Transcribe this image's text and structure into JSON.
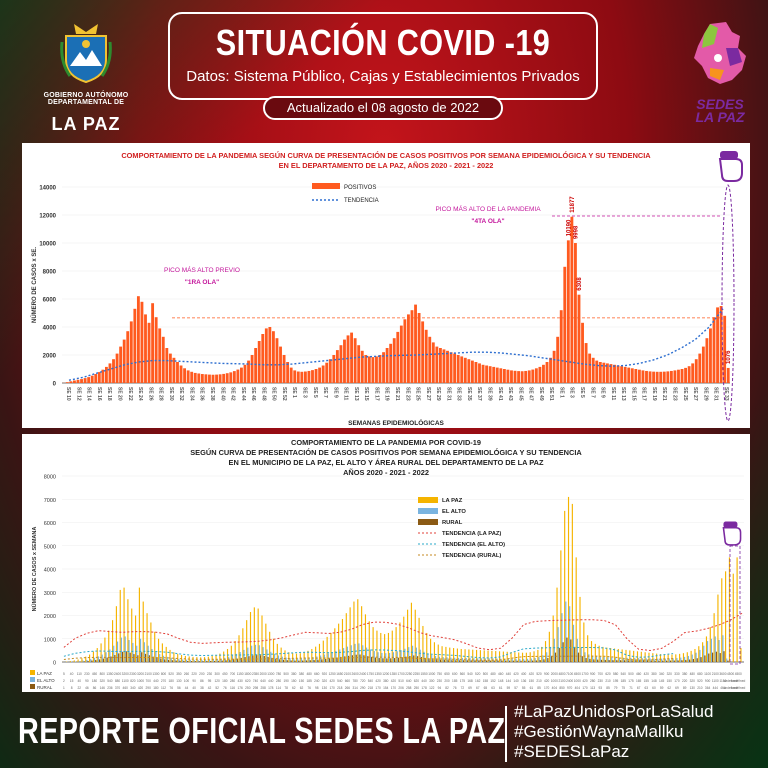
{
  "header": {
    "title": "SITUACIÓN COVID -19",
    "subtitle": "Datos: Sistema Público, Cajas y Establecimientos Privados",
    "updated": "Actualizado el  08  agosto de 2022"
  },
  "logo_left": {
    "line1": "GOBIERNO AUTÓNOMO DEPARTAMENTAL DE",
    "line2": "LA PAZ"
  },
  "logo_right": {
    "line1": "SEDES",
    "line2": "LA PAZ"
  },
  "colors": {
    "accent": "#ff5a1f",
    "title_red": "#d12020",
    "purple": "#7b2aa0",
    "la_paz": "#f5b400",
    "el_alto": "#7ab4e0",
    "rural": "#8b5a14"
  },
  "chart_data": [
    {
      "type": "bar",
      "title_lines": [
        "COMPORTAMIENTO DE LA PANDEMIA SEGÚN CURVA DE PRESENTACIÓN DE CASOS POSITIVOS POR SEMANA EPIDEMIOLÓGICA Y SU TENDENCIA",
        "EN EL DEPARTAMENTO DE LA PAZ, AÑOS 2020 - 2021 - 2022"
      ],
      "ylabel": "NÚMERO DE CASOS x SE.",
      "xlabel": "SEMANAS EPIDEMIOLÓGICAS",
      "ylim": [
        0,
        14000
      ],
      "yticks": [
        "0",
        "2000",
        "4000",
        "6000",
        "8000",
        "10000",
        "12000",
        "14000"
      ],
      "legend": [
        "POSITIVOS",
        "TENDENCIA"
      ],
      "annotations": {
        "peak_previous": [
          "PICO MÁS ALTO PREVIO",
          "\"1RA OLA\""
        ],
        "peak_max": [
          "PICO MÁS ALTO DE LA PANDEMIA",
          "\"4TA OLA\""
        ],
        "peak_max_values": [
          "10190",
          "11877",
          "9998",
          "6308"
        ],
        "last_value": "1076"
      },
      "xticks": [
        "SE 10",
        "SE 12",
        "SE 14",
        "SE 16",
        "SE 18",
        "SE 20",
        "SE 22",
        "SE 24",
        "SE 26",
        "SE 28",
        "SE 30",
        "SE 32",
        "SE 34",
        "SE 36",
        "SE 38",
        "SE 40",
        "SE 42",
        "SE 44",
        "SE 46",
        "SE 48",
        "SE 50",
        "SE 52",
        "SE 1",
        "SE 3",
        "SE 5",
        "SE 7",
        "SE 9",
        "SE 11",
        "SE 13",
        "SE 15",
        "SE 17",
        "SE 19",
        "SE 21",
        "SE 23",
        "SE 25",
        "SE 27",
        "SE 29",
        "SE 31",
        "SE 33",
        "SE 35",
        "SE 37",
        "SE 39",
        "SE 41",
        "SE 43",
        "SE 45",
        "SE 47",
        "SE 49",
        "SE 51",
        "SE 1",
        "SE 3",
        "SE 5",
        "SE 7",
        "SE 9",
        "SE 11",
        "SE 13",
        "SE 15",
        "SE 17",
        "SE 19",
        "SE 21",
        "SE 23",
        "SE 25",
        "SE 27",
        "SE 29",
        "SE 31",
        "SE 33"
      ],
      "series": [
        {
          "name": "POSITIVOS",
          "values": [
            10,
            60,
            120,
            180,
            230,
            280,
            350,
            420,
            520,
            640,
            780,
            950,
            1150,
            1400,
            1700,
            2100,
            2600,
            3100,
            3700,
            4400,
            5300,
            6200,
            5800,
            4900,
            4300,
            5700,
            4700,
            3900,
            3300,
            2500,
            2100,
            1800,
            1500,
            1250,
            1050,
            900,
            800,
            720,
            680,
            640,
            620,
            600,
            590,
            600,
            620,
            650,
            700,
            760,
            850,
            960,
            1100,
            1300,
            1600,
            2000,
            2500,
            3000,
            3500,
            3900,
            4000,
            3700,
            3200,
            2600,
            2000,
            1500,
            1100,
            900,
            820,
            800,
            820,
            860,
            920,
            1000,
            1100,
            1250,
            1450,
            1700,
            2000,
            2350,
            2700,
            3100,
            3400,
            3600,
            3200,
            2700,
            2300,
            2000,
            1900,
            1850,
            1900,
            2000,
            2200,
            2500,
            2800,
            3200,
            3650,
            4100,
            4550,
            4900,
            5200,
            5600,
            5000,
            4400,
            3800,
            3300,
            2900,
            2600,
            2500,
            2400,
            2300,
            2200,
            2100,
            2000,
            1900,
            1800,
            1700,
            1600,
            1500,
            1400,
            1300,
            1250,
            1200,
            1150,
            1100,
            1050,
            1000,
            950,
            900,
            870,
            850,
            840,
            860,
            900,
            960,
            1050,
            1150,
            1300,
            1500,
            1800,
            2300,
            3300,
            5200,
            8300,
            10190,
            11877,
            9998,
            6308,
            4300,
            2853,
            2100,
            1800,
            1600,
            1500,
            1450,
            1400,
            1350,
            1300,
            1250,
            1200,
            1150,
            1100,
            1050,
            1000,
            950,
            900,
            860,
            830,
            810,
            800,
            800,
            810,
            830,
            860,
            900,
            950,
            1000,
            1080,
            1200,
            1400,
            1700,
            2100,
            2600,
            3200,
            3900,
            4700,
            5400,
            5500,
            4800,
            1076
          ]
        },
        {
          "name": "TENDENCIA",
          "values": [
            200,
            400,
            700,
            1000,
            1300,
            1500,
            1600,
            1600,
            1550,
            1500,
            1450,
            1400,
            1380,
            1350,
            1300,
            1300,
            1350,
            1450,
            1550,
            1650,
            1750,
            1850,
            1900,
            1950,
            1980,
            2000,
            2050,
            2100,
            2150,
            2200,
            2200,
            2150,
            2050,
            1950,
            1800,
            1650,
            1500,
            1350,
            1250,
            1200,
            1250,
            1400,
            1650,
            2000,
            2500,
            3100,
            4000,
            5300
          ]
        }
      ]
    },
    {
      "type": "bar",
      "title_lines": [
        "COMPORTAMIENTO DE LA PANDEMIA POR COVID-19",
        "SEGÚN CURVA DE PRESENTACIÓN DE CASOS POSITIVOS POR SEMANA EPIDEMIOLÓGICA Y SU TENDENCIA",
        "EN EL  MUNICIPIO DE LA PAZ, EL ALTO Y ÁREA RURAL DEL DEPARTAMENTO DE LA PAZ",
        "AÑOS 2020 - 2021 - 2022"
      ],
      "ylabel": "NÚMERO DE CASOS x SEMANA",
      "ylim": [
        0,
        8000
      ],
      "yticks": [
        "0",
        "1000",
        "2000",
        "3000",
        "4000",
        "5000",
        "6000",
        "7000",
        "8000"
      ],
      "legend": [
        "LA PAZ",
        "EL ALTO",
        "RURAL",
        "TENDENCIA (LA PAZ)",
        "TENDENCIA (EL ALTO)",
        "TENDENCIA (RURAL)"
      ],
      "row_labels": [
        "LA PAZ",
        "EL ALTO",
        "RURAL"
      ],
      "series": [
        {
          "name": "LA PAZ",
          "values": [
            5,
            20,
            40,
            70,
            110,
            160,
            230,
            320,
            450,
            600,
            800,
            1050,
            1350,
            1800,
            2400,
            3100,
            3200,
            2700,
            2300,
            2000,
            3200,
            2600,
            2100,
            1700,
            1300,
            1000,
            800,
            650,
            520,
            420,
            350,
            300,
            260,
            240,
            220,
            210,
            200,
            210,
            230,
            260,
            300,
            360,
            450,
            560,
            700,
            900,
            1150,
            1450,
            1800,
            2150,
            2350,
            2300,
            2000,
            1650,
            1300,
            1000,
            780,
            620,
            500,
            420,
            380,
            360,
            380,
            420,
            480,
            560,
            660,
            780,
            920,
            1080,
            1250,
            1450,
            1650,
            1850,
            2100,
            2350,
            2600,
            2700,
            2400,
            2050,
            1750,
            1500,
            1350,
            1250,
            1200,
            1250,
            1350,
            1500,
            1700,
            1950,
            2250,
            2550,
            2250,
            1900,
            1550,
            1250,
            1000,
            850,
            750,
            680,
            650,
            620,
            600,
            580,
            560,
            550,
            540,
            530,
            520,
            510,
            500,
            490,
            480,
            470,
            460,
            450,
            440,
            430,
            420,
            410,
            400,
            400,
            420,
            460,
            520,
            650,
            900,
            1300,
            2000,
            3200,
            4800,
            6500,
            7100,
            6800,
            4500,
            2800,
            1700,
            1150,
            900,
            780,
            700,
            650,
            620,
            600,
            580,
            560,
            540,
            520,
            500,
            480,
            460,
            440,
            420,
            400,
            380,
            360,
            340,
            330,
            320,
            320,
            330,
            350,
            380,
            420,
            480,
            560,
            680,
            850,
            1100,
            1500,
            2100,
            2900,
            3600,
            3900,
            4500,
            3800,
            4500,
            600
          ]
        },
        {
          "name": "EL ALTO",
          "values": [
            2,
            8,
            15,
            25,
            40,
            60,
            90,
            130,
            180,
            240,
            320,
            420,
            540,
            700,
            880,
            1050,
            1100,
            950,
            820,
            700,
            1000,
            850,
            700,
            560,
            440,
            340,
            270,
            220,
            180,
            150,
            130,
            110,
            100,
            95,
            90,
            88,
            86,
            90,
            95,
            105,
            120,
            145,
            180,
            225,
            280,
            350,
            430,
            520,
            620,
            700,
            740,
            720,
            640,
            540,
            440,
            350,
            280,
            230,
            190,
            165,
            150,
            145,
            150,
            165,
            185,
            210,
            240,
            280,
            320,
            370,
            420,
            480,
            540,
            600,
            660,
            720,
            780,
            800,
            720,
            620,
            540,
            470,
            420,
            390,
            380,
            390,
            420,
            460,
            510,
            570,
            640,
            700,
            620,
            530,
            440,
            360,
            300,
            260,
            230,
            210,
            200,
            190,
            185,
            180,
            175,
            170,
            168,
            165,
            162,
            160,
            158,
            155,
            152,
            150,
            148,
            146,
            144,
            142,
            140,
            138,
            136,
            140,
            150,
            170,
            210,
            290,
            420,
            650,
            1000,
            1500,
            2100,
            2600,
            2400,
            1600,
            1000,
            620,
            420,
            330,
            280,
            250,
            230,
            220,
            210,
            200,
            195,
            190,
            185,
            180,
            175,
            170,
            165,
            160,
            155,
            150,
            148,
            146,
            145,
            146,
            150,
            158,
            170,
            190,
            220,
            260,
            320,
            400,
            520,
            700,
            900,
            1000,
            1100,
            950,
            1150,
            150
          ]
        },
        {
          "name": "RURAL",
          "values": [
            1,
            4,
            8,
            14,
            22,
            32,
            46,
            64,
            86,
            112,
            146,
            188,
            236,
            300,
            370,
            440,
            460,
            400,
            340,
            290,
            420,
            350,
            290,
            230,
            180,
            140,
            112,
            92,
            76,
            64,
            56,
            48,
            44,
            42,
            40,
            39,
            38,
            40,
            42,
            46,
            52,
            62,
            76,
            94,
            116,
            144,
            176,
            212,
            250,
            282,
            298,
            290,
            258,
            218,
            178,
            142,
            114,
            94,
            78,
            68,
            62,
            60,
            62,
            68,
            76,
            86,
            98,
            114,
            130,
            150,
            170,
            194,
            218,
            242,
            266,
            290,
            314,
            322,
            290,
            250,
            218,
            190,
            170,
            158,
            154,
            158,
            170,
            186,
            206,
            230,
            258,
            282,
            250,
            214,
            178,
            146,
            122,
            106,
            94,
            86,
            82,
            78,
            76,
            74,
            72,
            70,
            69,
            68,
            67,
            66,
            65,
            64,
            63,
            62,
            61,
            60,
            59,
            58,
            57,
            56,
            55,
            57,
            61,
            69,
            85,
            117,
            170,
            262,
            404,
            605,
            850,
            1050,
            970,
            650,
            404,
            250,
            170,
            134,
            113,
            101,
            93,
            89,
            85,
            81,
            79,
            77,
            75,
            73,
            71,
            69,
            67,
            65,
            63,
            61,
            60,
            59,
            59,
            60,
            62,
            64,
            69,
            77,
            89,
            105,
            130,
            162,
            210,
            282,
            364,
            404,
            444,
            384,
            464,
            60
          ]
        }
      ]
    }
  ],
  "footer": {
    "title": "REPORTE OFICIAL SEDES LA PAZ",
    "tags": [
      "#LaPazUnidosPorLaSalud",
      "#GestiónWaynaMallku",
      "#SEDESLaPaz"
    ]
  }
}
